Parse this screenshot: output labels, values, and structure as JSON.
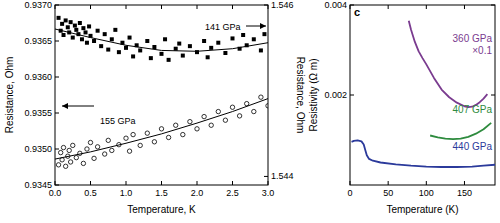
{
  "chart_data": [
    {
      "type": "scatter",
      "x_label": "Temperature, K",
      "y_label": "Resistance, Ohm",
      "y2_label": "Resistance, Ohm",
      "xlim": [
        0,
        3
      ],
      "xticks": [
        {
          "value": 0,
          "label": "0.0"
        },
        0.5,
        {
          "value": 1,
          "label": "1.0"
        },
        1.5,
        {
          "value": 2,
          "label": "2.0"
        },
        2.5,
        {
          "value": 3,
          "label": "3.0"
        }
      ],
      "ylim": [
        0.9345,
        0.937
      ],
      "yticks": [
        0.9345,
        {
          "value": 0.935,
          "label": "0.9350"
        },
        0.9355,
        {
          "value": 0.936,
          "label": "0.9360"
        },
        0.9365,
        {
          "value": 0.937,
          "label": "0.9370"
        }
      ],
      "y2lim": [
        1.5439,
        1.546
      ],
      "y2ticks": [
        1.544,
        1.546
      ],
      "series": [
        {
          "name": "141 GPa",
          "axis": "y2",
          "marker": "square",
          "color": "#000000",
          "x": [
            0.05,
            0.08,
            0.1,
            0.12,
            0.15,
            0.18,
            0.2,
            0.22,
            0.25,
            0.28,
            0.3,
            0.33,
            0.35,
            0.38,
            0.4,
            0.43,
            0.45,
            0.48,
            0.5,
            0.55,
            0.6,
            0.65,
            0.7,
            0.75,
            0.8,
            0.85,
            0.9,
            0.95,
            1.0,
            1.05,
            1.1,
            1.15,
            1.2,
            1.3,
            1.35,
            1.4,
            1.5,
            1.55,
            1.6,
            1.7,
            1.75,
            1.8,
            1.9,
            2.0,
            2.1,
            2.15,
            2.2,
            2.3,
            2.4,
            2.5,
            2.6,
            2.65,
            2.7,
            2.8,
            2.9,
            2.95
          ],
          "values": [
            1.54585,
            1.5457,
            1.54578,
            1.54565,
            1.54582,
            1.54574,
            1.54568,
            1.5458,
            1.54562,
            1.54576,
            1.54571,
            1.54566,
            1.54579,
            1.5456,
            1.54573,
            1.54568,
            1.54556,
            1.54575,
            1.54564,
            1.54558,
            1.5457,
            1.54552,
            1.54566,
            1.54548,
            1.5456,
            1.54571,
            1.54545,
            1.54556,
            1.5455,
            1.54562,
            1.5454,
            1.54553,
            1.54547,
            1.54558,
            1.54538,
            1.54551,
            1.54543,
            1.5456,
            1.54536,
            1.54549,
            1.54555,
            1.54541,
            1.54552,
            1.54545,
            1.54558,
            1.54539,
            1.5455,
            1.54556,
            1.54544,
            1.54561,
            1.54549,
            1.54565,
            1.54553,
            1.5456,
            1.54547,
            1.54566
          ]
        },
        {
          "name": "155 GPa",
          "axis": "y",
          "marker": "open-circle",
          "color": "#000000",
          "x": [
            0.05,
            0.08,
            0.1,
            0.12,
            0.15,
            0.18,
            0.2,
            0.22,
            0.25,
            0.3,
            0.35,
            0.4,
            0.45,
            0.5,
            0.55,
            0.6,
            0.7,
            0.75,
            0.8,
            0.9,
            1.0,
            1.05,
            1.1,
            1.2,
            1.3,
            1.4,
            1.5,
            1.6,
            1.7,
            1.8,
            1.9,
            2.0,
            2.1,
            2.2,
            2.3,
            2.4,
            2.5,
            2.6,
            2.7,
            2.8,
            2.9,
            3.0
          ],
          "values": [
            0.93478,
            0.93495,
            0.93485,
            0.93502,
            0.93476,
            0.9349,
            0.93498,
            0.93482,
            0.93505,
            0.93488,
            0.93494,
            0.9348,
            0.935,
            0.93509,
            0.93487,
            0.93503,
            0.93493,
            0.93512,
            0.93498,
            0.93506,
            0.93515,
            0.93497,
            0.9352,
            0.93505,
            0.93522,
            0.9351,
            0.93528,
            0.93516,
            0.93533,
            0.9352,
            0.93538,
            0.93528,
            0.93545,
            0.93533,
            0.93552,
            0.9354,
            0.93558,
            0.93546,
            0.93563,
            0.93552,
            0.93572,
            0.9356
          ]
        },
        {
          "type": "line",
          "axis": "y2",
          "color": "#000000",
          "x": [
            0,
            0.5,
            1,
            1.5,
            2,
            2.5,
            3
          ],
          "values": [
            1.54572,
            1.54562,
            1.54553,
            1.54547,
            1.54546,
            1.54549,
            1.54556
          ]
        },
        {
          "type": "line",
          "axis": "y",
          "color": "#000000",
          "x": [
            0,
            0.5,
            1,
            1.5,
            2,
            2.5,
            3
          ],
          "values": [
            0.93486,
            0.93496,
            0.93508,
            0.93521,
            0.93536,
            0.93552,
            0.9357
          ]
        }
      ]
    },
    {
      "type": "line",
      "title": "c",
      "x_label": "Temperature (K)",
      "y_label": "Resistivity (Ω m)",
      "xlim": [
        0,
        190
      ],
      "xticks": [
        0,
        50,
        100,
        150
      ],
      "ylim": [
        0,
        0.004
      ],
      "yticks": [
        0.002,
        0.004
      ],
      "annotations": [
        "×0.1"
      ],
      "series": [
        {
          "name": "360 GPa",
          "color": "#7a3b8f",
          "x": [
            77,
            80,
            85,
            90,
            95,
            100,
            110,
            120,
            130,
            140,
            150,
            155,
            160,
            165,
            170,
            175,
            180
          ],
          "values": [
            0.00365,
            0.00345,
            0.00318,
            0.00297,
            0.00282,
            0.00268,
            0.00238,
            0.00212,
            0.00195,
            0.00183,
            0.00175,
            0.00173,
            0.00174,
            0.00178,
            0.00184,
            0.00192,
            0.00202
          ]
        },
        {
          "name": "407 GPa",
          "color": "#2e8b3e",
          "x": [
            105,
            115,
            125,
            135,
            145,
            155,
            165,
            175,
            185
          ],
          "values": [
            0.0011,
            0.00106,
            0.00103,
            0.00102,
            0.00103,
            0.00107,
            0.00114,
            0.00124,
            0.00138
          ]
        },
        {
          "name": "440 GPa",
          "color": "#2b3a9b",
          "x": [
            2,
            5,
            10,
            15,
            18,
            20,
            22,
            25,
            30,
            40,
            60,
            80,
            100,
            120,
            140,
            160,
            175,
            190
          ],
          "values": [
            0.00096,
            0.00098,
            0.00099,
            0.00097,
            0.0009,
            0.00078,
            0.00066,
            0.00058,
            0.00054,
            0.0005,
            0.00046,
            0.00043,
            0.00041,
            0.0004,
            0.0004,
            0.00041,
            0.00043,
            0.00045
          ]
        }
      ]
    }
  ]
}
